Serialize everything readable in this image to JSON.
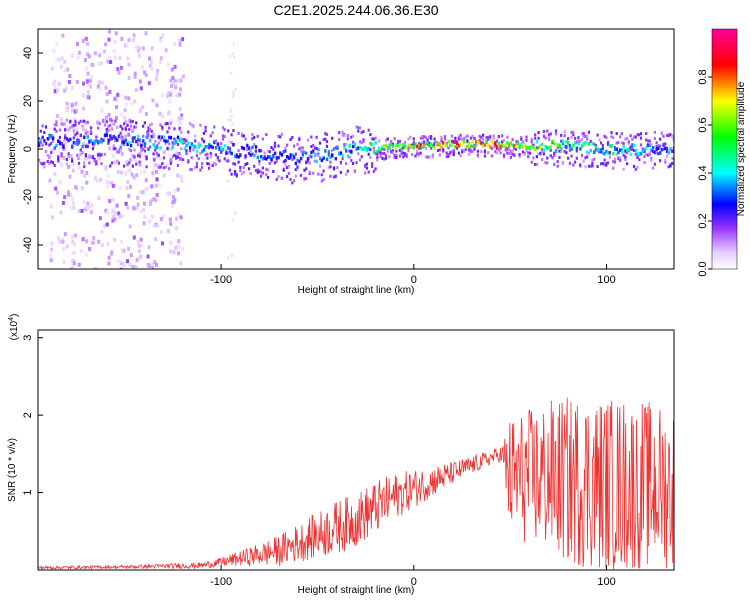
{
  "title": "C2E1.2025.244.06.36.E30",
  "chart_data": [
    {
      "type": "heatmap",
      "xlabel": "Height of straight line (km)",
      "ylabel": "Frequency (Hz)",
      "xlim": [
        -195,
        135
      ],
      "ylim": [
        -50,
        50
      ],
      "xticks": [
        "-100",
        "0",
        "100"
      ],
      "xtick_values": [
        -100,
        0,
        100
      ],
      "yticks": [
        "40",
        "20",
        "0",
        "-20",
        "-40"
      ],
      "ytick_values": [
        40,
        20,
        0,
        -20,
        -40
      ],
      "colorbar": {
        "label": "Normalized spectral amplitude",
        "range": [
          0,
          1
        ],
        "ticks": [
          "0.0",
          "0.2",
          "0.4",
          "0.6",
          "0.8"
        ],
        "tick_values": [
          0,
          0.2,
          0.4,
          0.6,
          0.8
        ]
      },
      "ridge": {
        "x": [
          -195,
          -180,
          -160,
          -140,
          -120,
          -100,
          -80,
          -60,
          -40,
          -30,
          -20,
          -10,
          0,
          10,
          20,
          30,
          40,
          50,
          60,
          70,
          80,
          90,
          100,
          110,
          120,
          135
        ],
        "frequency": [
          3,
          3,
          3,
          2.5,
          2,
          0,
          -2,
          -4,
          -2,
          0,
          0,
          1,
          1.5,
          1.5,
          2,
          2,
          2,
          1.5,
          1.5,
          1,
          1,
          0.5,
          0,
          -0.5,
          0,
          0.5
        ],
        "peak_amplitude": [
          0.35,
          0.35,
          0.35,
          0.4,
          0.45,
          0.4,
          0.35,
          0.35,
          0.4,
          0.45,
          0.6,
          0.7,
          0.8,
          0.85,
          0.85,
          0.9,
          0.85,
          0.8,
          0.7,
          0.65,
          0.55,
          0.55,
          0.5,
          0.45,
          0.4,
          0.35
        ]
      }
    },
    {
      "type": "line",
      "xlabel": "Height of straight line (km)",
      "ylabel": "SNR (10 * v/v)",
      "y_scale_label": "(x10",
      "y_scale_exponent": "4",
      "y_scale_close": ")",
      "xlim": [
        -195,
        135
      ],
      "ylim": [
        0,
        3.1
      ],
      "xticks": [
        "-100",
        "0",
        "100"
      ],
      "xtick_values": [
        -100,
        0,
        100
      ],
      "yticks": [
        "1",
        "2",
        "3"
      ],
      "ytick_values": [
        1,
        2,
        3
      ],
      "series_color": "#ee3333",
      "envelope": {
        "x": [
          -195,
          -150,
          -110,
          -100,
          -90,
          -80,
          -70,
          -60,
          -50,
          -40,
          -30,
          -20,
          -10,
          0,
          10,
          20,
          30,
          40,
          45,
          50,
          60,
          70,
          80,
          90,
          100,
          110,
          120,
          135
        ],
        "mean": [
          0.03,
          0.04,
          0.06,
          0.1,
          0.15,
          0.2,
          0.25,
          0.35,
          0.45,
          0.55,
          0.65,
          0.8,
          0.95,
          1.05,
          1.15,
          1.25,
          1.35,
          1.45,
          1.5,
          1.2,
          1.2,
          1.2,
          1.15,
          1.15,
          1.1,
          1.1,
          1.1,
          1.05
        ],
        "spread": [
          0.02,
          0.02,
          0.04,
          0.06,
          0.1,
          0.15,
          0.2,
          0.25,
          0.3,
          0.35,
          0.35,
          0.35,
          0.3,
          0.25,
          0.2,
          0.15,
          0.12,
          0.1,
          0.1,
          0.8,
          0.9,
          1.0,
          1.1,
          1.15,
          1.15,
          1.15,
          1.1,
          1.05
        ]
      }
    }
  ]
}
